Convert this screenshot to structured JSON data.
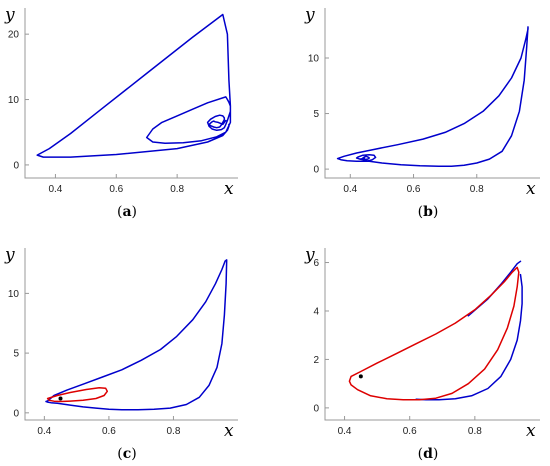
{
  "chart_data": [
    {
      "type": "line",
      "panel_label": "a",
      "xlabel": "x",
      "ylabel": "y",
      "xlim": [
        0.3,
        1.0
      ],
      "ylim": [
        -2,
        24
      ],
      "xticks": [
        0.4,
        0.6,
        0.8
      ],
      "yticks": [
        0,
        10,
        20
      ],
      "grid": false,
      "series": [
        {
          "color": "#0000cc",
          "x": [
            0.96,
            0.955,
            0.95,
            0.945,
            0.935,
            0.925,
            0.92,
            0.915,
            0.91,
            0.905,
            0.91,
            0.92,
            0.93,
            0.94,
            0.945,
            0.95,
            0.955,
            0.955,
            0.95,
            0.94,
            0.925,
            0.91,
            0.9,
            0.905,
            0.915,
            0.93,
            0.945,
            0.955,
            0.96,
            0.965,
            0.97,
            0.975,
            0.975,
            0.97,
            0.965,
            0.96,
            0.9,
            0.85,
            0.8,
            0.75,
            0.72,
            0.7,
            0.72,
            0.76,
            0.82,
            0.88,
            0.93,
            0.96,
            0.975,
            0.975,
            0.97,
            0.965,
            0.95,
            0.85,
            0.7,
            0.55,
            0.45,
            0.38,
            0.34,
            0.36,
            0.45,
            0.6,
            0.8,
            0.9,
            0.95,
            0.965,
            0.97,
            0.97
          ],
          "y": [
            6.8,
            6.5,
            6.2,
            6.3,
            6.5,
            6.6,
            6.7,
            6.6,
            6.4,
            6.2,
            6.0,
            5.8,
            5.7,
            5.8,
            6.1,
            6.5,
            6.9,
            7.2,
            7.5,
            7.6,
            7.4,
            7.0,
            6.5,
            5.9,
            5.5,
            5.3,
            5.4,
            5.7,
            6.2,
            6.8,
            7.5,
            8.2,
            9.0,
            9.6,
            10.0,
            10.4,
            9.5,
            8.5,
            7.5,
            6.5,
            5.5,
            4.2,
            3.5,
            3.3,
            3.4,
            3.7,
            4.3,
            5.0,
            6.5,
            9.0,
            13.0,
            20.0,
            23.0,
            19.5,
            14.0,
            8.5,
            4.8,
            2.5,
            1.5,
            1.2,
            1.2,
            1.6,
            2.5,
            3.5,
            4.5,
            5.3,
            5.9,
            6.2
          ]
        }
      ]
    },
    {
      "type": "line",
      "panel_label": "b",
      "xlabel": "x",
      "ylabel": "y",
      "xlim": [
        0.32,
        1.0
      ],
      "ylim": [
        -0.8,
        14.5
      ],
      "xticks": [
        0.4,
        0.6,
        0.8
      ],
      "yticks": [
        0,
        5,
        10
      ],
      "grid": false,
      "series": [
        {
          "color": "#0000cc",
          "x": [
            0.44,
            0.445,
            0.45,
            0.455,
            0.46,
            0.455,
            0.44,
            0.43,
            0.42,
            0.425,
            0.44,
            0.46,
            0.475,
            0.48,
            0.47,
            0.45,
            0.42,
            0.39,
            0.37,
            0.36,
            0.38,
            0.42,
            0.48,
            0.55,
            0.63,
            0.7,
            0.76,
            0.82,
            0.87,
            0.91,
            0.94,
            0.955,
            0.962,
            0.962,
            0.958,
            0.95,
            0.935,
            0.91,
            0.88,
            0.84,
            0.8,
            0.76,
            0.72,
            0.68,
            0.62,
            0.56,
            0.5,
            0.46,
            0.44,
            0.43,
            0.44,
            0.445
          ],
          "y": [
            1.0,
            1.1,
            1.15,
            1.1,
            1.0,
            0.9,
            0.85,
            0.9,
            1.0,
            1.1,
            1.25,
            1.3,
            1.25,
            1.05,
            0.85,
            0.7,
            0.7,
            0.75,
            0.85,
            0.95,
            1.15,
            1.45,
            1.8,
            2.2,
            2.7,
            3.3,
            4.1,
            5.2,
            6.6,
            8.2,
            10.0,
            11.7,
            12.6,
            12.8,
            11.0,
            8.0,
            5.2,
            3.0,
            1.6,
            0.9,
            0.55,
            0.35,
            0.25,
            0.25,
            0.3,
            0.4,
            0.55,
            0.7,
            0.85,
            0.9,
            0.95,
            1.0
          ]
        }
      ]
    },
    {
      "type": "line",
      "panel_label": "c",
      "xlabel": "x",
      "ylabel": "y",
      "xlim": [
        0.34,
        1.0
      ],
      "ylim": [
        -0.6,
        13.8
      ],
      "xticks": [
        0.4,
        0.6,
        0.8
      ],
      "yticks": [
        0,
        5,
        10
      ],
      "grid": false,
      "series": [
        {
          "name": "",
          "color": "#0000cc",
          "x": [
            0.41,
            0.43,
            0.47,
            0.52,
            0.58,
            0.64,
            0.7,
            0.76,
            0.81,
            0.86,
            0.9,
            0.93,
            0.95,
            0.96,
            0.965,
            0.963,
            0.958,
            0.95,
            0.935,
            0.91,
            0.88,
            0.84,
            0.79,
            0.74,
            0.69,
            0.64,
            0.6,
            0.56,
            0.52,
            0.48,
            0.44,
            0.42,
            0.41,
            0.405,
            0.41
          ],
          "y": [
            1.0,
            1.45,
            1.9,
            2.4,
            3.0,
            3.6,
            4.4,
            5.3,
            6.4,
            7.8,
            9.3,
            10.8,
            12.0,
            12.7,
            12.8,
            10.8,
            8.2,
            5.8,
            3.8,
            2.3,
            1.3,
            0.7,
            0.4,
            0.3,
            0.25,
            0.25,
            0.3,
            0.4,
            0.5,
            0.65,
            0.8,
            0.85,
            0.9,
            0.95,
            1.0
          ]
        },
        {
          "name": "",
          "color": "#dd0000",
          "x": [
            0.41,
            0.44,
            0.48,
            0.53,
            0.57,
            0.59,
            0.595,
            0.585,
            0.56,
            0.52,
            0.48,
            0.45,
            0.43,
            0.415,
            0.41
          ],
          "y": [
            1.2,
            1.45,
            1.7,
            1.95,
            2.1,
            2.05,
            1.8,
            1.45,
            1.2,
            1.05,
            0.98,
            0.95,
            0.97,
            1.05,
            1.2
          ]
        }
      ],
      "points": [
        {
          "x": 0.45,
          "y": 1.2
        }
      ]
    },
    {
      "type": "line",
      "panel_label": "d",
      "xlabel": "x",
      "ylabel": "y",
      "xlim": [
        0.34,
        1.0
      ],
      "ylim": [
        -0.5,
        6.6
      ],
      "xticks": [
        0.4,
        0.6,
        0.8
      ],
      "yticks": [
        0,
        2,
        4,
        6
      ],
      "grid": false,
      "series": [
        {
          "name": "",
          "color": "#0000cc",
          "x": [
            0.94,
            0.945,
            0.945,
            0.94,
            0.93,
            0.91,
            0.88,
            0.84,
            0.79,
            0.74,
            0.69,
            0.65,
            0.62
          ],
          "y": [
            5.5,
            5.0,
            4.3,
            3.6,
            2.8,
            2.0,
            1.3,
            0.8,
            0.5,
            0.38,
            0.34,
            0.34,
            0.36
          ],
          "x_more": [
            0.78,
            0.84,
            0.88,
            0.91,
            0.93,
            0.94
          ],
          "y_more": [
            3.8,
            4.5,
            5.1,
            5.6,
            5.95,
            6.05
          ]
        },
        {
          "name": "",
          "color": "#dd0000",
          "x": [
            0.42,
            0.45,
            0.5,
            0.56,
            0.62,
            0.68,
            0.74,
            0.8,
            0.85,
            0.89,
            0.915,
            0.93,
            0.935,
            0.93,
            0.92,
            0.9,
            0.87,
            0.83,
            0.78,
            0.73,
            0.68,
            0.63,
            0.58,
            0.53,
            0.48,
            0.44,
            0.42,
            0.415,
            0.42
          ],
          "y": [
            1.3,
            1.5,
            1.85,
            2.25,
            2.65,
            3.05,
            3.5,
            4.05,
            4.65,
            5.2,
            5.6,
            5.8,
            5.6,
            5.0,
            4.2,
            3.3,
            2.4,
            1.6,
            1.0,
            0.6,
            0.4,
            0.34,
            0.34,
            0.38,
            0.5,
            0.75,
            0.95,
            1.1,
            1.3
          ]
        }
      ],
      "points": [
        {
          "x": 0.45,
          "y": 1.3
        }
      ]
    }
  ]
}
